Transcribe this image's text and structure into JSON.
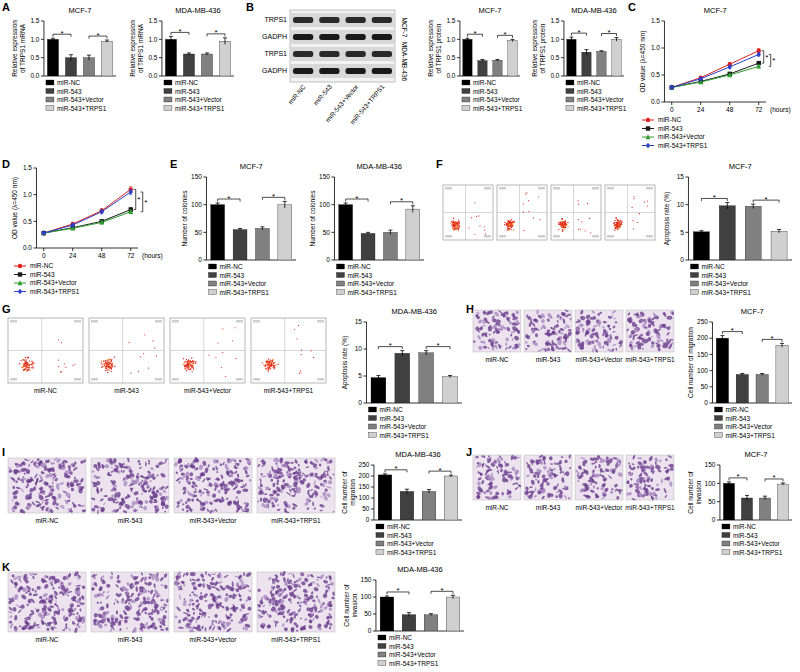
{
  "chart_data": [
    {
      "type": "bar",
      "title": "MCF-7",
      "y_label": "Relative expression of TRPS1 mRNA",
      "categories": [
        "miR-NC",
        "miR-543",
        "miR-543+Vector",
        "miR-543+TRPS1"
      ],
      "values": [
        1.0,
        0.5,
        0.5,
        0.95
      ],
      "errors": [
        0.03,
        0.08,
        0.07,
        0.03
      ],
      "colors": [
        "#000000",
        "#404040",
        "#808080",
        "#d0d0d0"
      ],
      "ylim": [
        0,
        1.5
      ],
      "yticks": [
        {
          "value": 0,
          "label": "0.0"
        },
        {
          "value": 0.5,
          "label": "0.5"
        },
        {
          "value": 1,
          "label": "1.0"
        },
        {
          "value": 1.5,
          "label": "1.5"
        }
      ],
      "annotations": [
        "*",
        "*"
      ],
      "legend": "bottom"
    },
    {
      "type": "bar",
      "title": "MDA-MB-436",
      "y_label": "Relative expression of TRPS1 mRNA",
      "categories": [
        "miR-NC",
        "miR-543",
        "miR-543+Vector",
        "miR-543+TRPS1"
      ],
      "values": [
        1.0,
        0.6,
        0.6,
        0.95
      ],
      "errors": [
        0.08,
        0.03,
        0.03,
        0.09
      ],
      "colors": [
        "#000000",
        "#404040",
        "#808080",
        "#d0d0d0"
      ],
      "ylim": [
        0,
        1.5
      ],
      "yticks": [
        {
          "value": 0,
          "label": "0.0"
        },
        {
          "value": 0.5,
          "label": "0.5"
        },
        {
          "value": 1,
          "label": "1.0"
        },
        {
          "value": 1.5,
          "label": "1.5"
        }
      ],
      "annotations": [
        "*",
        "*"
      ],
      "legend": "bottom"
    },
    {
      "type": "bar",
      "title": "MCF-7",
      "y_label": "Relative expression of TRPS1 protein",
      "categories": [
        "miR-NC",
        "miR-543",
        "miR-543+Vector",
        "miR-543+TRPS1"
      ],
      "values": [
        1.0,
        0.42,
        0.43,
        0.97
      ],
      "errors": [
        0.03,
        0.03,
        0.02,
        0.03
      ],
      "colors": [
        "#000000",
        "#404040",
        "#808080",
        "#d0d0d0"
      ],
      "ylim": [
        0,
        1.5
      ],
      "yticks": [
        {
          "value": 0,
          "label": "0.0"
        },
        {
          "value": 0.5,
          "label": "0.5"
        },
        {
          "value": 1,
          "label": "1.0"
        },
        {
          "value": 1.5,
          "label": "1.5"
        }
      ],
      "annotations": [
        "*",
        "*"
      ],
      "legend": "bottom"
    },
    {
      "type": "bar",
      "title": "MDA-MB-436",
      "y_label": "Relative expression of TRPS1 protein",
      "categories": [
        "miR-NC",
        "miR-543",
        "miR-543+Vector",
        "miR-543+TRPS1"
      ],
      "values": [
        1.0,
        0.65,
        0.67,
        1.0
      ],
      "errors": [
        0.06,
        0.07,
        0.02,
        0.05
      ],
      "colors": [
        "#000000",
        "#404040",
        "#808080",
        "#d0d0d0"
      ],
      "ylim": [
        0,
        1.5
      ],
      "yticks": [
        {
          "value": 0,
          "label": "0.0"
        },
        {
          "value": 0.5,
          "label": "0.5"
        },
        {
          "value": 1,
          "label": "1.0"
        },
        {
          "value": 1.5,
          "label": "1.5"
        }
      ],
      "annotations": [
        "*",
        "*"
      ],
      "legend": "bottom"
    },
    {
      "type": "line",
      "title": "MCF-7",
      "y_label": "OD value (λ=450 nm)",
      "x_label": "(hours)",
      "x": [
        0,
        24,
        48,
        72
      ],
      "xlim": [
        -6,
        78
      ],
      "xticks": [
        0,
        24,
        48,
        72
      ],
      "ylim": [
        0,
        1.5
      ],
      "yticks": [
        {
          "value": 0,
          "label": "0.0"
        },
        {
          "value": 0.5,
          "label": "0.5"
        },
        {
          "value": 1,
          "label": "1.0"
        },
        {
          "value": 1.5,
          "label": "1.5"
        }
      ],
      "series": [
        {
          "name": "miR-NC",
          "color": "#e0201b",
          "marker": "circle",
          "values": [
            0.27,
            0.45,
            0.7,
            0.95
          ],
          "errors": [
            0.02,
            0.02,
            0.03,
            0.04
          ]
        },
        {
          "name": "miR-543",
          "color": "#1a1a1a",
          "marker": "square",
          "values": [
            0.27,
            0.38,
            0.52,
            0.72
          ],
          "errors": [
            0.02,
            0.02,
            0.03,
            0.03
          ]
        },
        {
          "name": "miR-543+Vector",
          "color": "#2e9e2e",
          "marker": "triangle",
          "values": [
            0.27,
            0.37,
            0.5,
            0.66
          ],
          "errors": [
            0.02,
            0.02,
            0.02,
            0.03
          ]
        },
        {
          "name": "miR-543+TRPS1",
          "color": "#2a3fc8",
          "marker": "diamond",
          "values": [
            0.27,
            0.43,
            0.65,
            0.88
          ],
          "errors": [
            0.02,
            0.02,
            0.03,
            0.03
          ]
        }
      ],
      "annotations": [
        "*",
        "*"
      ],
      "legend": "bottom-left"
    },
    {
      "type": "line",
      "y_label": "OD value (λ=450 nm)",
      "x_label": "(hours)",
      "x": [
        0,
        24,
        48,
        72
      ],
      "xlim": [
        -6,
        78
      ],
      "xticks": [
        0,
        24,
        48,
        72
      ],
      "ylim": [
        0,
        1.5
      ],
      "yticks": [
        {
          "value": 0,
          "label": "0.0"
        },
        {
          "value": 0.5,
          "label": "0.5"
        },
        {
          "value": 1,
          "label": "1.0"
        },
        {
          "value": 1.5,
          "label": "1.5"
        }
      ],
      "series": [
        {
          "name": "miR-NC",
          "color": "#e0201b",
          "marker": "circle",
          "values": [
            0.28,
            0.45,
            0.7,
            1.1
          ],
          "errors": [
            0.02,
            0.03,
            0.04,
            0.05
          ]
        },
        {
          "name": "miR-543",
          "color": "#1a1a1a",
          "marker": "square",
          "values": [
            0.28,
            0.38,
            0.5,
            0.72
          ],
          "errors": [
            0.02,
            0.02,
            0.03,
            0.04
          ]
        },
        {
          "name": "miR-543+Vector",
          "color": "#2e9e2e",
          "marker": "triangle",
          "values": [
            0.28,
            0.37,
            0.48,
            0.68
          ],
          "errors": [
            0.02,
            0.02,
            0.03,
            0.03
          ]
        },
        {
          "name": "miR-543+TRPS1",
          "color": "#2a3fc8",
          "marker": "diamond",
          "values": [
            0.28,
            0.43,
            0.68,
            1.05
          ],
          "errors": [
            0.02,
            0.03,
            0.04,
            0.05
          ]
        }
      ],
      "annotations": [
        "*",
        "*"
      ],
      "legend": "bottom-left"
    },
    {
      "type": "bar",
      "title": "MCF-7",
      "y_label": "Number of colonies",
      "categories": [
        "miR-NC",
        "miR-543",
        "miR-543+Vector",
        "miR-543+TRPS1"
      ],
      "values": [
        100,
        55,
        57,
        100
      ],
      "errors": [
        3,
        2,
        3,
        6
      ],
      "colors": [
        "#000000",
        "#404040",
        "#808080",
        "#d0d0d0"
      ],
      "ylim": [
        0,
        150
      ],
      "yticks": [
        0,
        50,
        100,
        150
      ],
      "annotations": [
        "*",
        "*"
      ],
      "legend": "bottom"
    },
    {
      "type": "bar",
      "title": "MDA-MB-436",
      "y_label": "Number of colonies",
      "categories": [
        "miR-NC",
        "miR-543",
        "miR-543+Vector",
        "miR-543+TRPS1"
      ],
      "values": [
        100,
        48,
        50,
        92
      ],
      "errors": [
        3,
        2,
        4,
        6
      ],
      "colors": [
        "#000000",
        "#404040",
        "#808080",
        "#d0d0d0"
      ],
      "ylim": [
        0,
        150
      ],
      "yticks": [
        0,
        50,
        100,
        150
      ],
      "annotations": [
        "*",
        "*"
      ],
      "legend": "bottom"
    },
    {
      "type": "bar",
      "title": "MCF-7",
      "y_label": "Apoptosis rate (%)",
      "categories": [
        "miR-NC",
        "miR-543",
        "miR-543+Vector",
        "miR-543+TRPS1"
      ],
      "values": [
        5.1,
        9.8,
        9.7,
        5.2
      ],
      "errors": [
        0.2,
        0.6,
        0.4,
        0.3
      ],
      "colors": [
        "#000000",
        "#404040",
        "#808080",
        "#d0d0d0"
      ],
      "ylim": [
        0,
        15
      ],
      "yticks": [
        0,
        5,
        10,
        15
      ],
      "annotations": [
        "*",
        "*"
      ],
      "legend": "bottom"
    },
    {
      "type": "bar",
      "title": "MDA-MB-436",
      "y_label": "Apoptosis rate (%)",
      "categories": [
        "miR-NC",
        "miR-543",
        "miR-543+Vector",
        "miR-543+TRPS1"
      ],
      "values": [
        4.7,
        9.2,
        9.3,
        4.9
      ],
      "errors": [
        0.4,
        0.5,
        0.4,
        0.2
      ],
      "colors": [
        "#000000",
        "#404040",
        "#808080",
        "#d0d0d0"
      ],
      "ylim": [
        0,
        15
      ],
      "yticks": [
        0,
        5,
        10,
        15
      ],
      "annotations": [
        "*",
        "*"
      ],
      "legend": "bottom"
    },
    {
      "type": "bar",
      "title": "MCF-7",
      "y_label": "Cell number of migration",
      "categories": [
        "miR-NC",
        "miR-543",
        "miR-543+Vector",
        "miR-543+TRPS1"
      ],
      "values": [
        200,
        88,
        88,
        178
      ],
      "errors": [
        8,
        3,
        3,
        6
      ],
      "colors": [
        "#000000",
        "#404040",
        "#808080",
        "#d0d0d0"
      ],
      "ylim": [
        0,
        250
      ],
      "yticks": [
        0,
        50,
        100,
        150,
        200,
        250
      ],
      "annotations": [
        "*",
        "*"
      ],
      "legend": "bottom"
    },
    {
      "type": "bar",
      "title": "MDA-MB-436",
      "y_label": "Cell number of migration",
      "categories": [
        "miR-NC",
        "miR-543",
        "miR-543+Vector",
        "miR-543+TRPS1"
      ],
      "values": [
        205,
        130,
        130,
        200
      ],
      "errors": [
        5,
        10,
        8,
        4
      ],
      "colors": [
        "#000000",
        "#404040",
        "#808080",
        "#d0d0d0"
      ],
      "ylim": [
        0,
        250
      ],
      "yticks": [
        0,
        50,
        100,
        150,
        200,
        250
      ],
      "annotations": [
        "*",
        "*"
      ],
      "legend": "bottom"
    },
    {
      "type": "bar",
      "title": "MCF-7",
      "y_label": "Cell number of invasion",
      "categories": [
        "miR-NC",
        "miR-543",
        "miR-543+Vector",
        "miR-543+TRPS1"
      ],
      "values": [
        100,
        60,
        60,
        98
      ],
      "errors": [
        4,
        7,
        5,
        3
      ],
      "colors": [
        "#000000",
        "#404040",
        "#808080",
        "#d0d0d0"
      ],
      "ylim": [
        0,
        150
      ],
      "yticks": [
        0,
        50,
        100,
        150
      ],
      "annotations": [
        "*",
        "*"
      ],
      "legend": "bottom"
    },
    {
      "type": "bar",
      "title": "MDA-MB-436",
      "y_label": "Cell number of invasion",
      "categories": [
        "miR-NC",
        "miR-543",
        "miR-543+Vector",
        "miR-543+TRPS1"
      ],
      "values": [
        100,
        48,
        48,
        100
      ],
      "errors": [
        3,
        6,
        3,
        5
      ],
      "colors": [
        "#000000",
        "#404040",
        "#808080",
        "#d0d0d0"
      ],
      "ylim": [
        0,
        150
      ],
      "yticks": [
        0,
        50,
        100,
        150
      ],
      "annotations": [
        "*",
        "*"
      ],
      "legend": "bottom"
    }
  ],
  "figure": {
    "panel_letters": [
      "A",
      "B",
      "C",
      "D",
      "E",
      "F",
      "G",
      "H",
      "I",
      "J",
      "K"
    ],
    "blot": {
      "rows": [
        "TRPS1",
        "GADPH",
        "TRPS1",
        "GADPH"
      ],
      "cell_lines": [
        "MCF-7",
        "MDA-MB-436"
      ],
      "lanes": [
        "miR-NC",
        "miR-543",
        "miR-543+Vector",
        "miR-543+TRPS1"
      ]
    },
    "image_captions": [
      [
        "miR-NC",
        "miR-543",
        "miR-543+Vector",
        "miR-543+TRPS1"
      ],
      [
        "miR-NC",
        "miR-543",
        "miR-543+Vector",
        "miR-543+TRPS1"
      ],
      [
        "miR-NC",
        "miR-543",
        "miR-543+Vector",
        "miR-543+TRPS1"
      ],
      [
        "miR-NC",
        "miR-543",
        "miR-543+Vector",
        "miR-543+TRPS1"
      ],
      [
        "miR-NC",
        "miR-543",
        "miR-543+Vector",
        "miR-543+TRPS1"
      ]
    ]
  }
}
